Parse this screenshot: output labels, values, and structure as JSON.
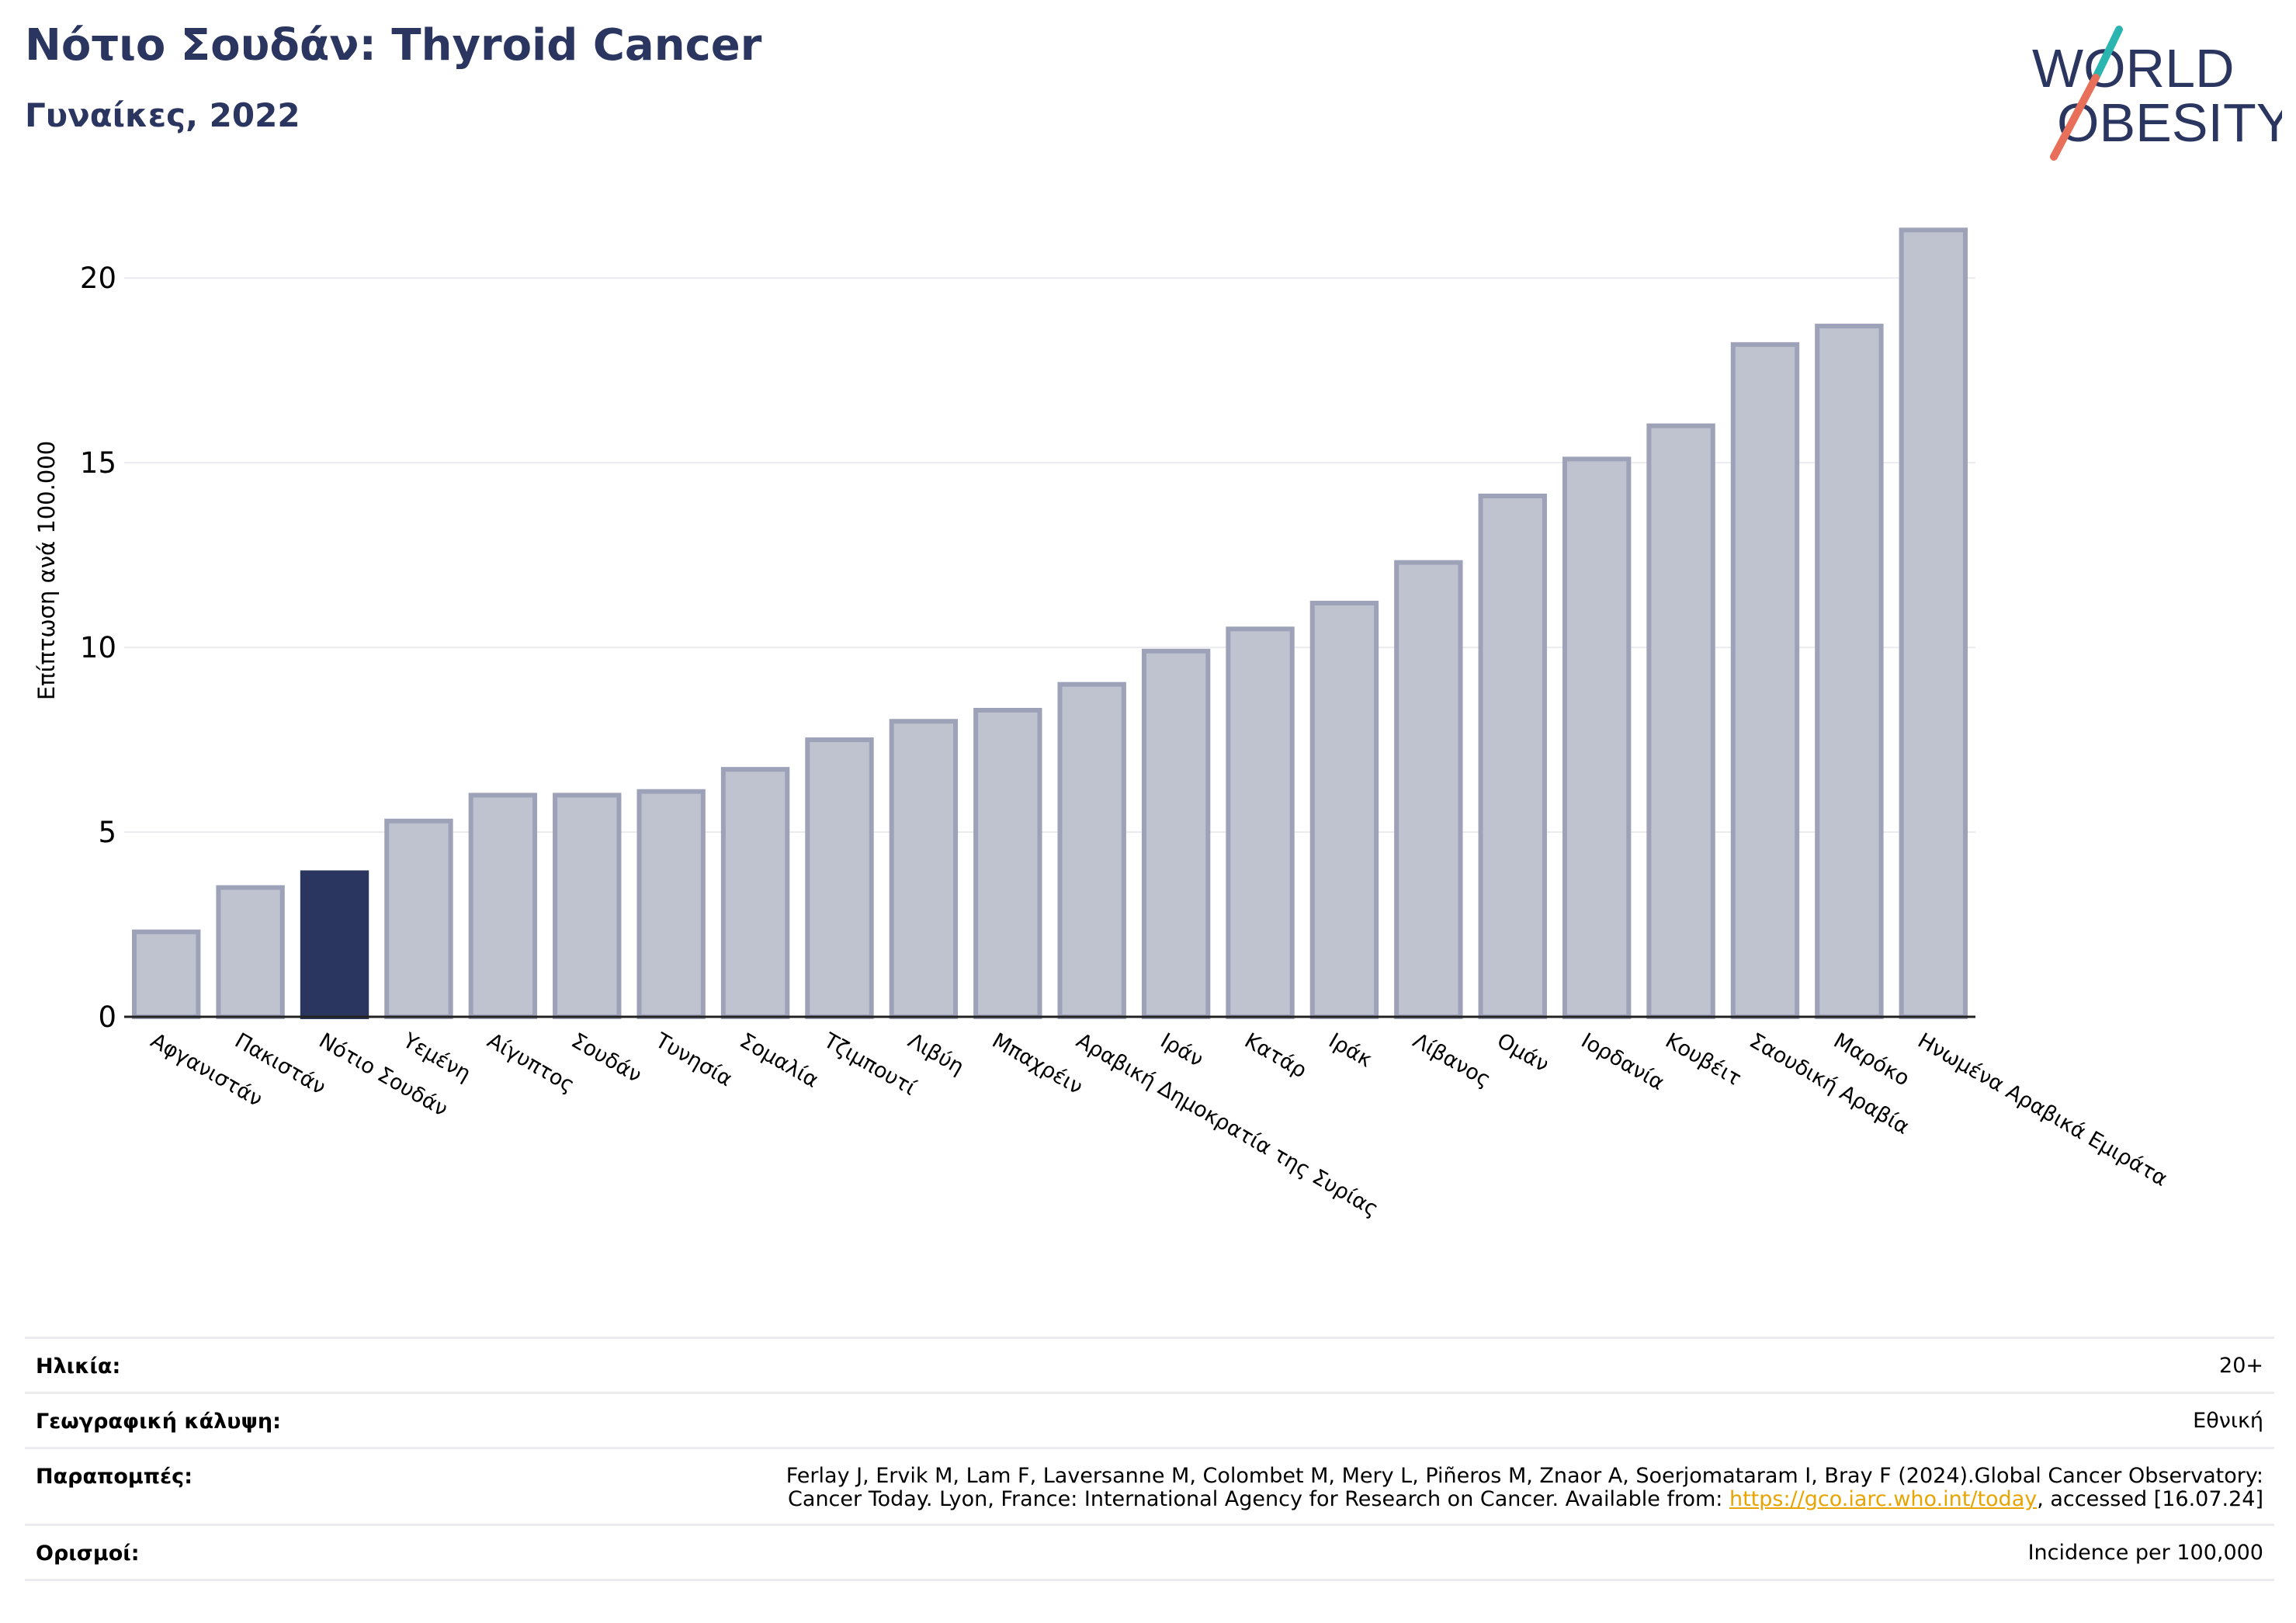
{
  "header": {
    "title": "Νότιο Σουδάν: Thyroid Cancer",
    "subtitle": "Γυναίκες, 2022"
  },
  "logo": {
    "line1": "WORLD",
    "line2": "OBESITY",
    "colors": {
      "text": "#2a3560",
      "slash_teal": "#2bb5b0",
      "slash_coral": "#e8705a"
    }
  },
  "colors": {
    "bar_default": "#bfc2cf",
    "bar_default_stroke": "#9da2b8",
    "bar_highlight": "#2a3560",
    "grid": "#ebebf0",
    "axis": "#222222"
  },
  "chart_data": {
    "type": "bar",
    "ylabel": "Επίπτωση ανά 100.000",
    "ylim": [
      0,
      22
    ],
    "yticks": [
      0,
      5,
      10,
      15,
      20
    ],
    "grid": true,
    "highlight": "Νότιο Σουδάν",
    "categories": [
      "Αφγανιστάν",
      "Πακιστάν",
      "Νότιο Σουδάν",
      "Υεμένη",
      "Αίγυπτος",
      "Σουδάν",
      "Τυνησία",
      "Σομαλία",
      "Τζιμπουτί",
      "Λιβύη",
      "Μπαχρέιν",
      "Αραβική Δημοκρατία της Συρίας",
      "Ιράν",
      "Κατάρ",
      "Ιράκ",
      "Λίβανος",
      "Ομάν",
      "Ιορδανία",
      "Κουβέιτ",
      "Σαουδική Αραβία",
      "Μαρόκο",
      "Ηνωμένα Αραβικά Εμιράτα"
    ],
    "values": [
      2.3,
      3.5,
      3.9,
      5.3,
      6.0,
      6.0,
      6.1,
      6.7,
      7.5,
      8.0,
      8.3,
      9.0,
      9.9,
      10.5,
      11.2,
      12.3,
      14.1,
      15.1,
      16.0,
      18.2,
      18.7,
      21.3
    ]
  },
  "info": {
    "age_label": "Ηλικία:",
    "age_value": "20+",
    "coverage_label": "Γεωγραφική κάλυψη:",
    "coverage_value": "Εθνική",
    "refs_label": "Παραπομπές:",
    "refs_line1": "Ferlay J, Ervik M, Lam F, Laversanne M, Colombet M, Mery L, Piñeros M, Znaor A, Soerjomataram I, Bray F (2024).Global Cancer Observatory:",
    "refs_line2_pre": "Cancer Today. Lyon, France: International Agency for Research on Cancer. Available from: ",
    "refs_link": "https://gco.iarc.who.int/today",
    "refs_line2_post": ", accessed [16.07.24]",
    "definitions_label": "Ορισμοί:",
    "definitions_value": "Incidence per 100,000"
  }
}
